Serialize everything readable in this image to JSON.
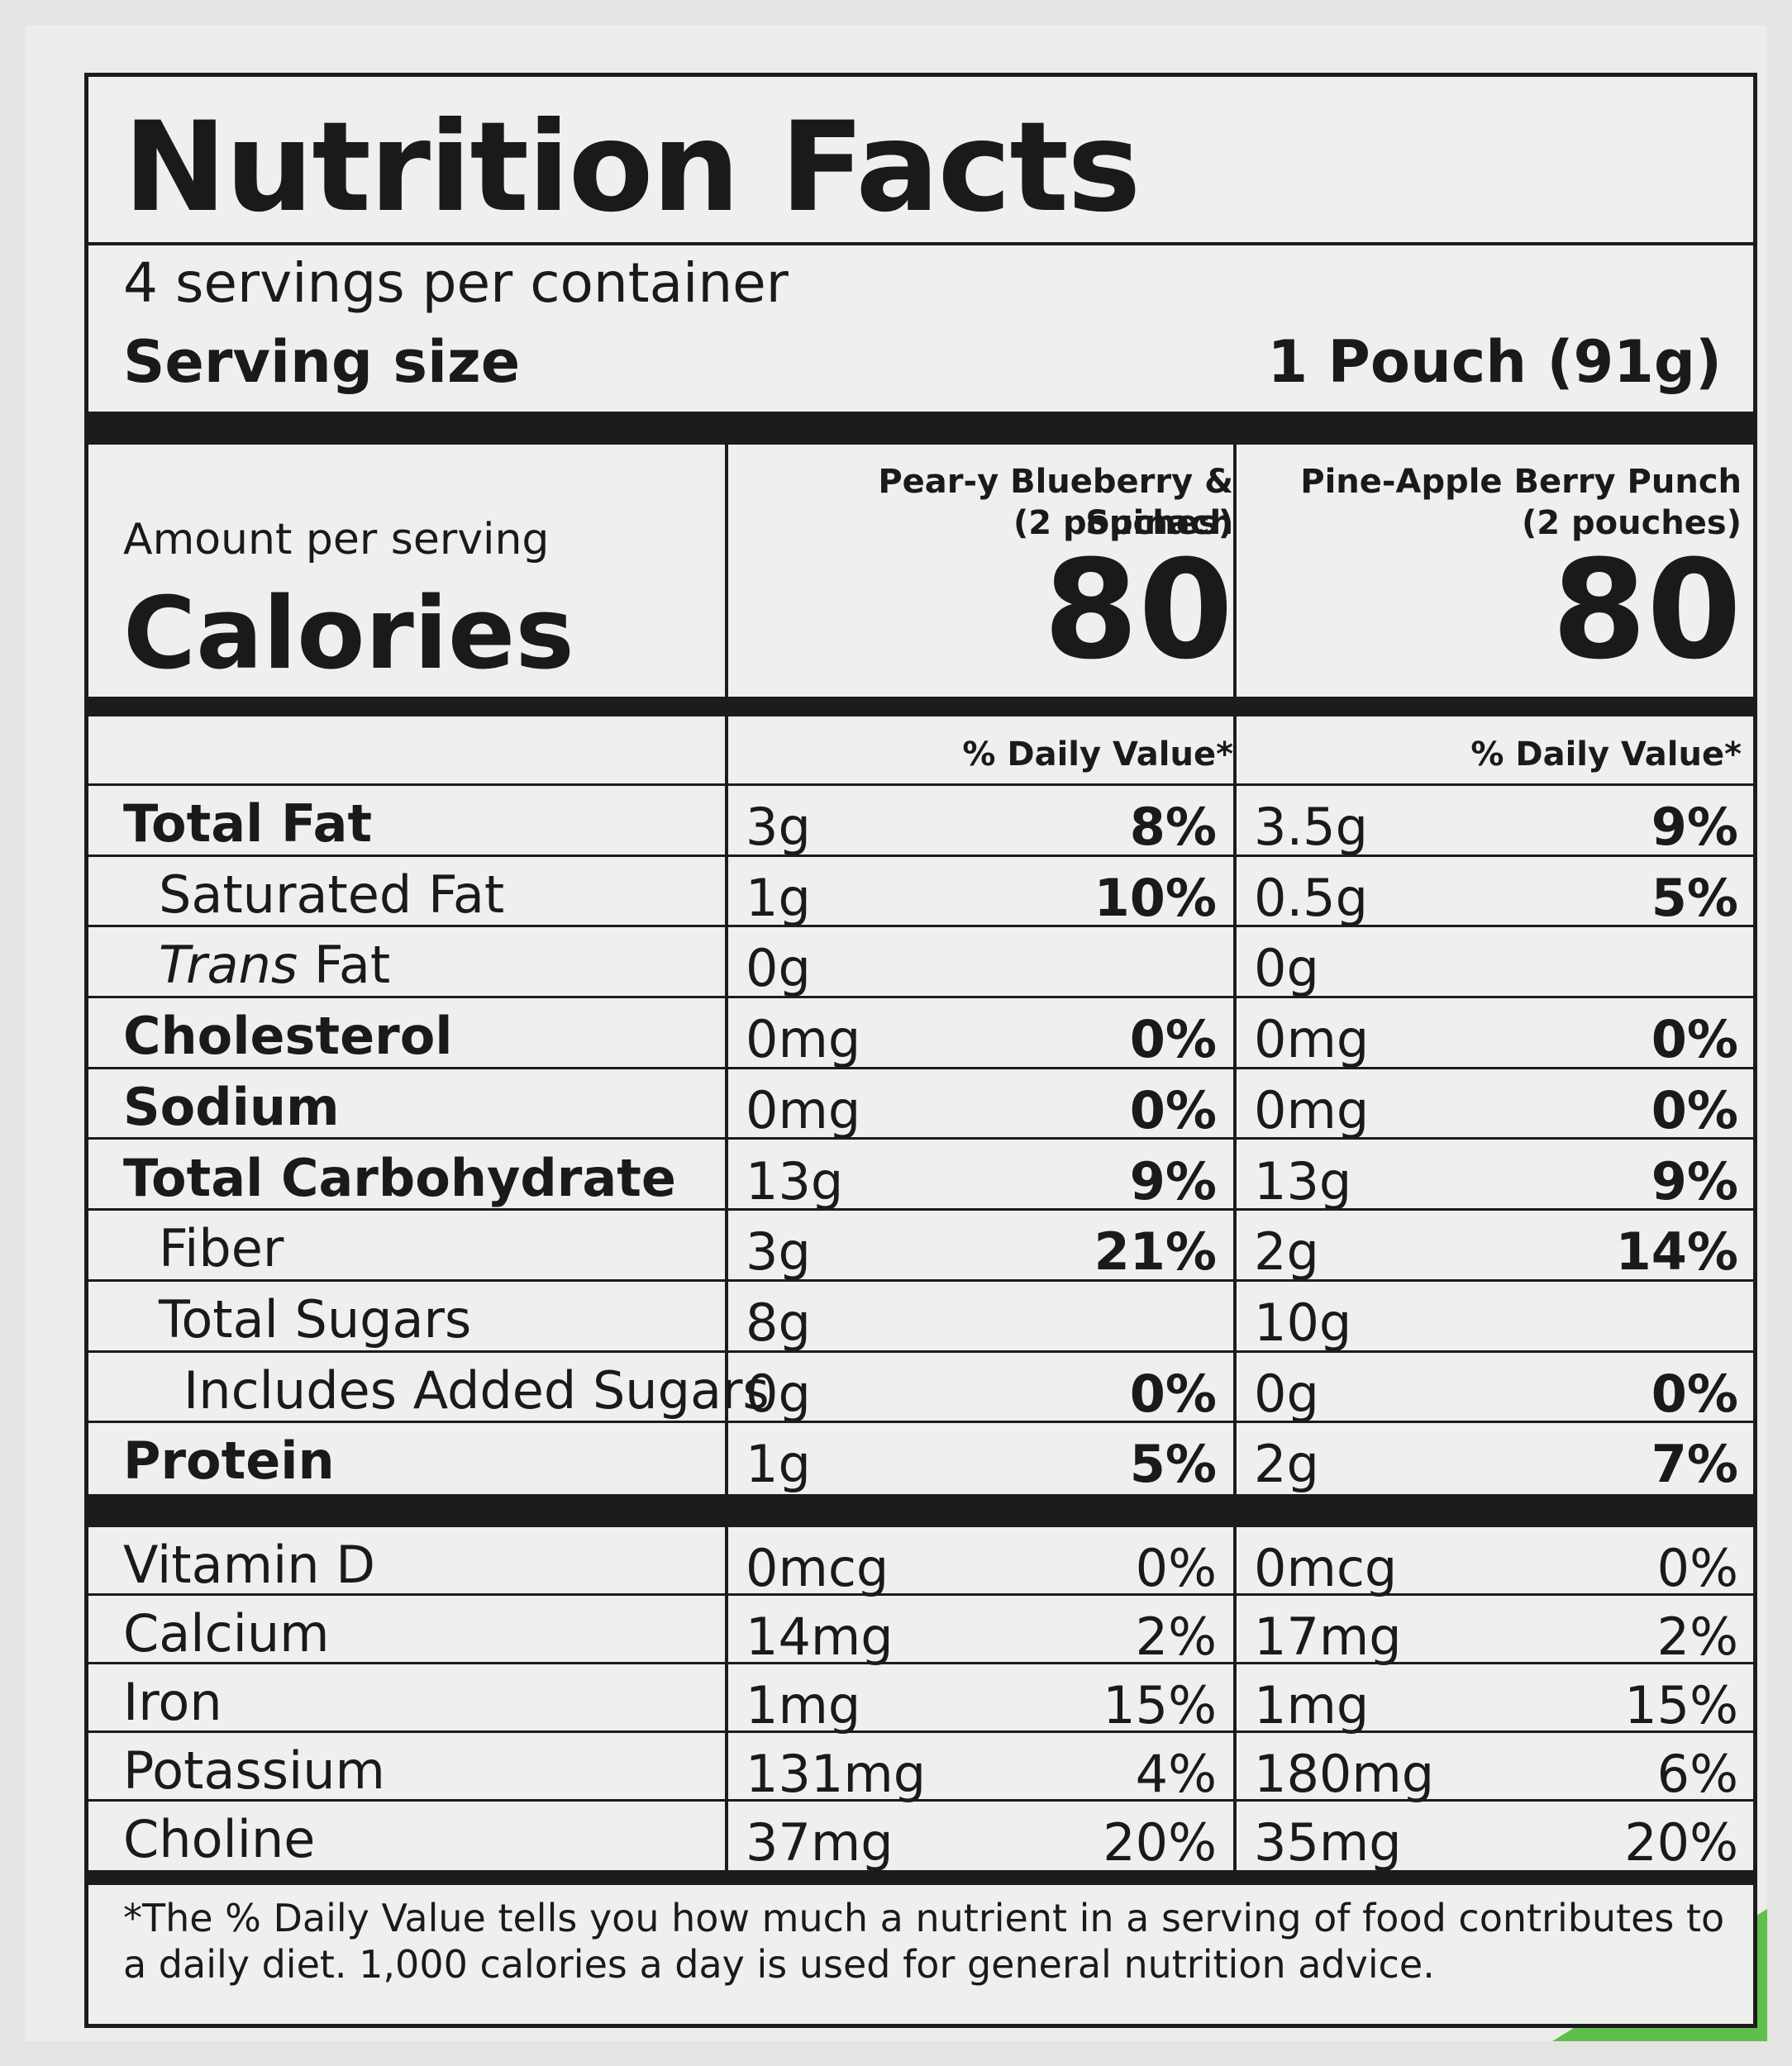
{
  "title": "Nutrition Facts",
  "servings_per_container": "4 servings per container",
  "serving_size_label": "Serving size",
  "serving_size_value": "1 Pouch (91g)",
  "amount_per_serving": "Amount per serving",
  "calories_label": "Calories",
  "products": [
    {
      "name": "Pear-y Blueberry & Spinach",
      "pouches": "(2 pouches)",
      "calories": "80"
    },
    {
      "name": "Pine-Apple Berry Punch",
      "pouches": "(2 pouches)",
      "calories": "80"
    }
  ],
  "dv_header": "% Daily Value*",
  "nutrients": [
    {
      "name": "Total Fat",
      "amounts": [
        "3g",
        "3.5g"
      ],
      "dv": [
        "8%",
        "9%"
      ]
    },
    {
      "name": "Saturated Fat",
      "amounts": [
        "1g",
        "0.5g"
      ],
      "dv": [
        "10%",
        "5%"
      ]
    },
    {
      "name_italic": "Trans",
      "name_rest": " Fat",
      "amounts": [
        "0g",
        "0g"
      ],
      "dv": [
        "",
        ""
      ]
    },
    {
      "name": "Cholesterol",
      "amounts": [
        "0mg",
        "0mg"
      ],
      "dv": [
        "0%",
        "0%"
      ]
    },
    {
      "name": "Sodium",
      "amounts": [
        "0mg",
        "0mg"
      ],
      "dv": [
        "0%",
        "0%"
      ]
    },
    {
      "name": "Total Carbohydrate",
      "amounts": [
        "13g",
        "13g"
      ],
      "dv": [
        "9%",
        "9%"
      ]
    },
    {
      "name": "Fiber",
      "amounts": [
        "3g",
        "2g"
      ],
      "dv": [
        "21%",
        "14%"
      ]
    },
    {
      "name": "Total Sugars",
      "amounts": [
        "8g",
        "10g"
      ],
      "dv": [
        "",
        ""
      ]
    },
    {
      "name": "Includes Added Sugars",
      "amounts": [
        "0g",
        "0g"
      ],
      "dv": [
        "0%",
        "0%"
      ]
    },
    {
      "name": "Protein",
      "amounts": [
        "1g",
        "2g"
      ],
      "dv": [
        "5%",
        "7%"
      ]
    }
  ],
  "micronutrients": [
    {
      "name": "Vitamin D",
      "amounts": [
        "0mcg",
        "0mcg"
      ],
      "dv": [
        "0%",
        "0%"
      ]
    },
    {
      "name": "Calcium",
      "amounts": [
        "14mg",
        "17mg"
      ],
      "dv": [
        "2%",
        "2%"
      ]
    },
    {
      "name": "Iron",
      "amounts": [
        "1mg",
        "1mg"
      ],
      "dv": [
        "15%",
        "15%"
      ]
    },
    {
      "name": "Potassium",
      "amounts": [
        "131mg",
        "180mg"
      ],
      "dv": [
        "4%",
        "6%"
      ]
    },
    {
      "name": "Choline",
      "amounts": [
        "37mg",
        "35mg"
      ],
      "dv": [
        "20%",
        "20%"
      ]
    }
  ],
  "footnote": "*The % Daily Value tells you how much a nutrient in a serving of food contributes to a daily diet. 1,000 calories a day is used for general nutrition advice."
}
